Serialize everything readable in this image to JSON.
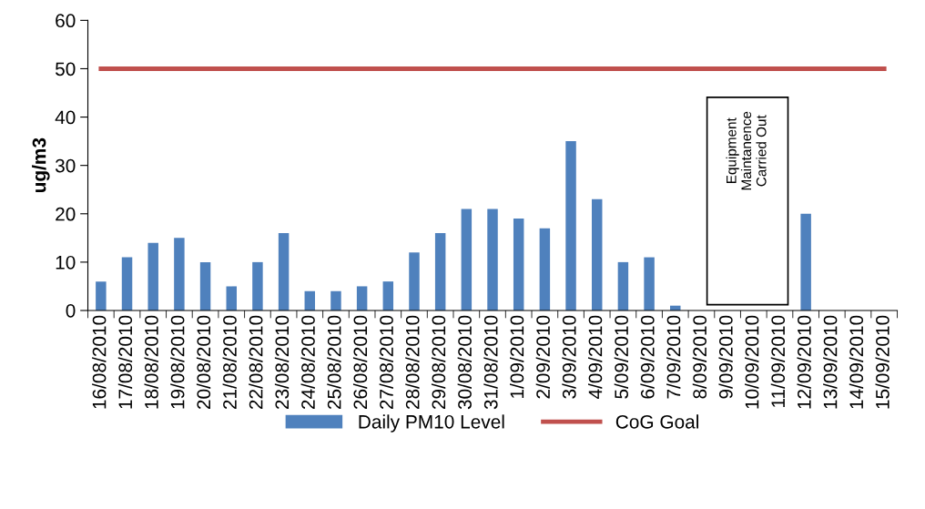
{
  "chart_data": {
    "type": "bar",
    "ylabel": "ug/m3",
    "categories": [
      "16/08/2010",
      "17/08/2010",
      "18/08/2010",
      "19/08/2010",
      "20/08/2010",
      "21/08/2010",
      "22/08/2010",
      "23/08/2010",
      "24/08/2010",
      "25/08/2010",
      "26/08/2010",
      "27/08/2010",
      "28/08/2010",
      "29/08/2010",
      "30/08/2010",
      "31/08/2010",
      "1/09/2010",
      "2/09/2010",
      "3/09/2010",
      "4/09/2010",
      "5/09/2010",
      "6/09/2010",
      "7/09/2010",
      "8/09/2010",
      "9/09/2010",
      "10/09/2010",
      "11/09/2010",
      "12/09/2010",
      "13/09/2010",
      "14/09/2010",
      "15/09/2010"
    ],
    "series": [
      {
        "name": "Daily PM10 Level",
        "color": "#4f81bd",
        "values": [
          6,
          11,
          14,
          15,
          10,
          5,
          10,
          16,
          4,
          4,
          5,
          6,
          12,
          16,
          21,
          21,
          19,
          17,
          35,
          23,
          10,
          11,
          1,
          null,
          null,
          null,
          null,
          20,
          null,
          null,
          null
        ]
      },
      {
        "name": "CoG Goal",
        "type": "line",
        "color": "#c0504d",
        "values": [
          50,
          50,
          50,
          50,
          50,
          50,
          50,
          50,
          50,
          50,
          50,
          50,
          50,
          50,
          50,
          50,
          50,
          50,
          50,
          50,
          50,
          50,
          50,
          50,
          50,
          50,
          50,
          50,
          50,
          50,
          50
        ]
      }
    ],
    "annotations": [
      "Equipment\nMaintanence\nCarried Out"
    ],
    "ylim": [
      0,
      60
    ],
    "yticks": [
      0,
      10,
      20,
      30,
      40,
      50,
      60
    ],
    "grid": false,
    "legend": "bottom"
  }
}
